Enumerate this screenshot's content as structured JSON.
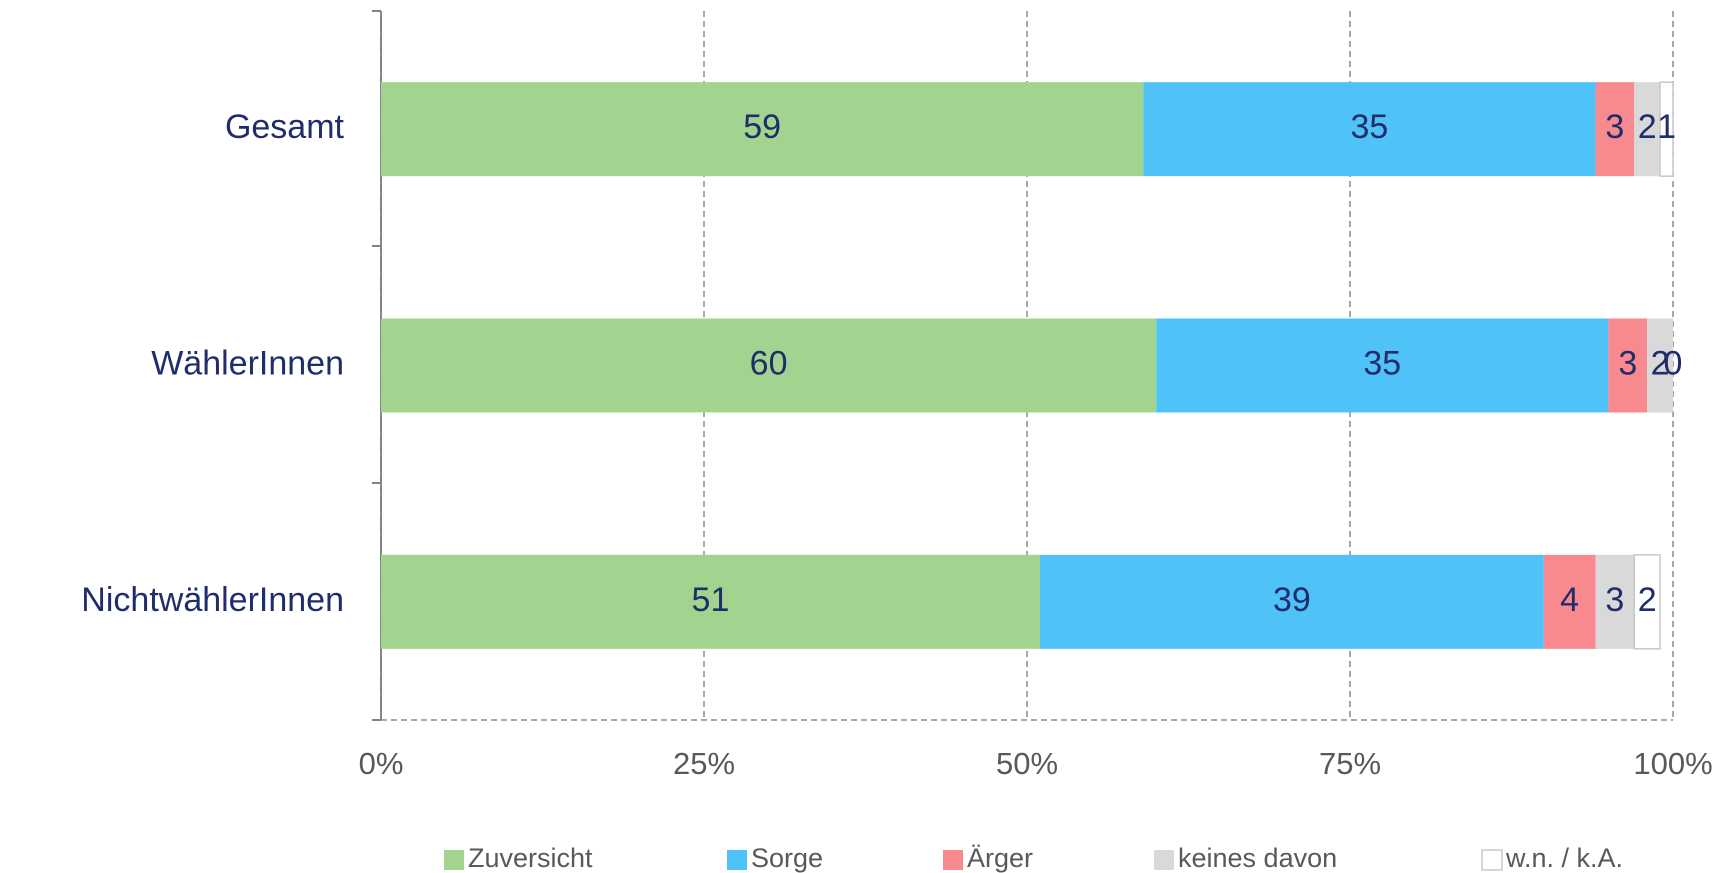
{
  "chart_data": {
    "type": "bar",
    "orientation": "horizontal",
    "stacked": true,
    "categories": [
      "Gesamt",
      "WählerInnen",
      "NichtwählerInnen"
    ],
    "series": [
      {
        "name": "Zuversicht",
        "color": "#a3d48f",
        "values": [
          59,
          60,
          51
        ]
      },
      {
        "name": "Sorge",
        "color": "#4fc3f7",
        "values": [
          35,
          35,
          39
        ]
      },
      {
        "name": "Ärger",
        "color": "#f7898f",
        "values": [
          3,
          3,
          4
        ]
      },
      {
        "name": "keines davon",
        "color": "#d9d9d9",
        "values": [
          2,
          2,
          3
        ]
      },
      {
        "name": "w.n. / k.A.",
        "color": "#ffffff",
        "values": [
          1,
          0,
          2
        ]
      }
    ],
    "xlim": [
      0,
      100
    ],
    "xticks": [
      {
        "value": 0,
        "label": "0%"
      },
      {
        "value": 25,
        "label": "25%"
      },
      {
        "value": 50,
        "label": "50%"
      },
      {
        "value": 75,
        "label": "75%"
      },
      {
        "value": 100,
        "label": "100%"
      }
    ],
    "grid": true,
    "legend": "bottom"
  }
}
